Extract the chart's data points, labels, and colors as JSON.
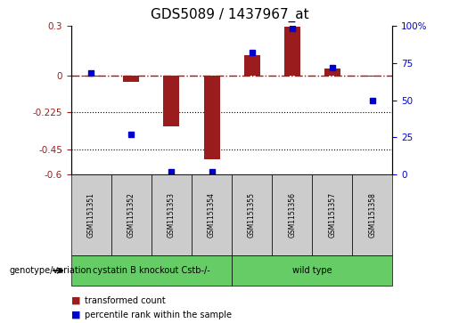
{
  "title": "GDS5089 / 1437967_at",
  "samples": [
    "GSM1151351",
    "GSM1151352",
    "GSM1151353",
    "GSM1151354",
    "GSM1151355",
    "GSM1151356",
    "GSM1151357",
    "GSM1151358"
  ],
  "red_values": [
    -0.005,
    -0.04,
    -0.31,
    -0.51,
    0.12,
    0.295,
    0.04,
    -0.005
  ],
  "blue_values": [
    68,
    27,
    2,
    2,
    82,
    98,
    72,
    50
  ],
  "ylim_left": [
    -0.6,
    0.3
  ],
  "ylim_right": [
    0,
    100
  ],
  "yticks_left": [
    0.3,
    0.0,
    -0.225,
    -0.45,
    -0.6
  ],
  "yticks_right": [
    100,
    75,
    50,
    25,
    0
  ],
  "hlines": [
    -0.225,
    -0.45
  ],
  "red_color": "#9B1C1C",
  "blue_color": "#0000CC",
  "dashed_line_color": "#CC0000",
  "bar_width": 0.4,
  "group1_label": "cystatin B knockout Cstb-/-",
  "group2_label": "wild type",
  "group1_count": 4,
  "group2_count": 4,
  "group_color": "#66CC66",
  "genotype_label": "genotype/variation",
  "legend1": "transformed count",
  "legend2": "percentile rank within the sample",
  "bg_color": "#FFFFFF",
  "plot_bg_color": "#FFFFFF",
  "sample_box_color": "#CCCCCC",
  "title_fontsize": 11
}
